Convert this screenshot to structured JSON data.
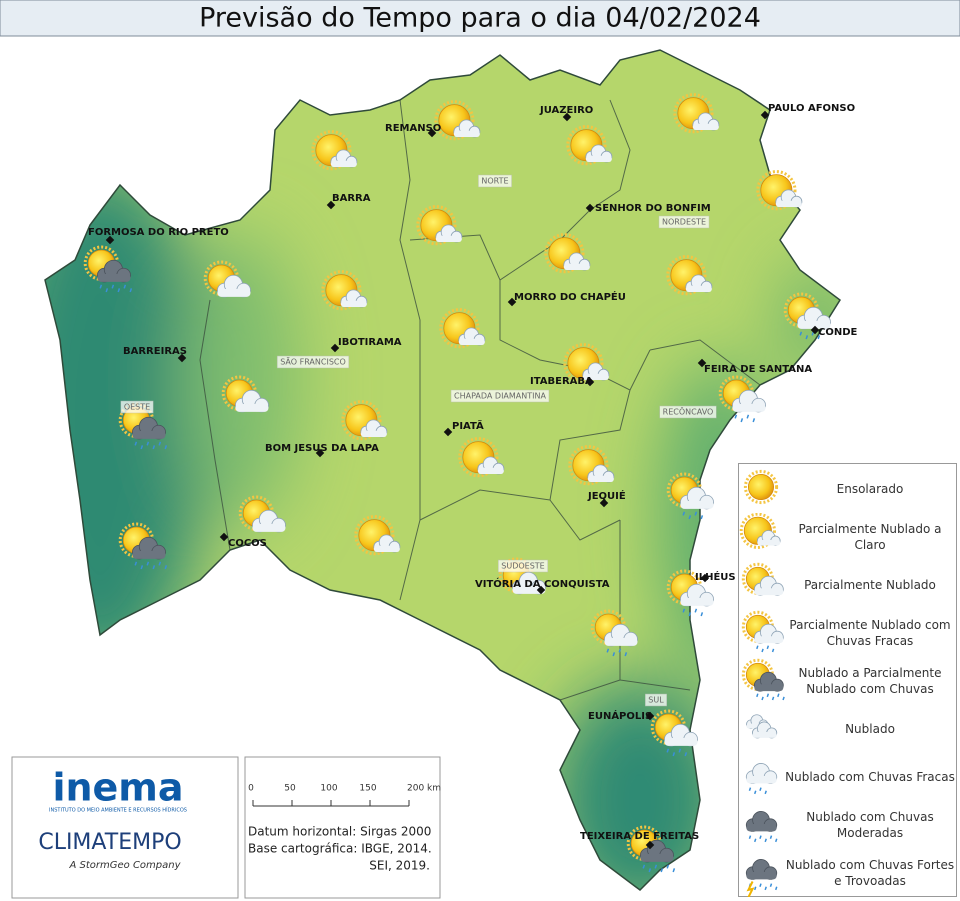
{
  "title": "Previsão do Tempo para o dia 04/02/2024",
  "cities": [
    "REMANSO",
    "JUAZEIRO",
    "PAULO AFONSO",
    "BARRA",
    "FORMOSA DO RIO PRETO",
    "SENHOR DO BONFIM",
    "MORRO DO CHAPÉU",
    "IBOTIRAMA",
    "CONDE",
    "BARREIRAS",
    "FEIRA DE SANTANA",
    "ITABERABA",
    "PIATÃ",
    "BOM JESUS DA LAPA",
    "JEQUIÉ",
    "COCOS",
    "VITÓRIA DA CONQUISTA",
    "ILHÉUS",
    "EUNÁPOLIS",
    "TEIXEIRA DE FREITAS"
  ],
  "regions": [
    "NORTE",
    "NORDESTE",
    "SÃO FRANCISCO",
    "CHAPADA DIAMANTINA",
    "RECÔNCAVO",
    "OESTE",
    "SUDOESTE",
    "SUL"
  ],
  "legend": [
    "Ensolarado",
    "Parcialmente Nublado a Claro",
    "Parcialmente Nublado",
    "Parcialmente Nublado com Chuvas Fracas",
    "Nublado a Parcialmente Nublado com Chuvas",
    "Nublado",
    "Nublado com Chuvas Fracas",
    "Nublado com Chuvas Moderadas",
    "Nublado com Chuvas Fortes e Trovoadas"
  ],
  "logos": {
    "inema": "inema",
    "inema_sub": "INSTITUTO DO MEIO AMBIENTE E RECURSOS HÍDRICOS",
    "climatempo": "CLIMATEMPO",
    "climatempo_sub": "A StormGeo Company"
  },
  "scale": {
    "ticks": [
      "0",
      "50",
      "100",
      "150",
      "200 km"
    ],
    "notes": [
      "Datum horizontal: Sirgas 2000",
      "Base cartográfica: IBGE, 2014.",
      "SEI, 2019."
    ]
  }
}
